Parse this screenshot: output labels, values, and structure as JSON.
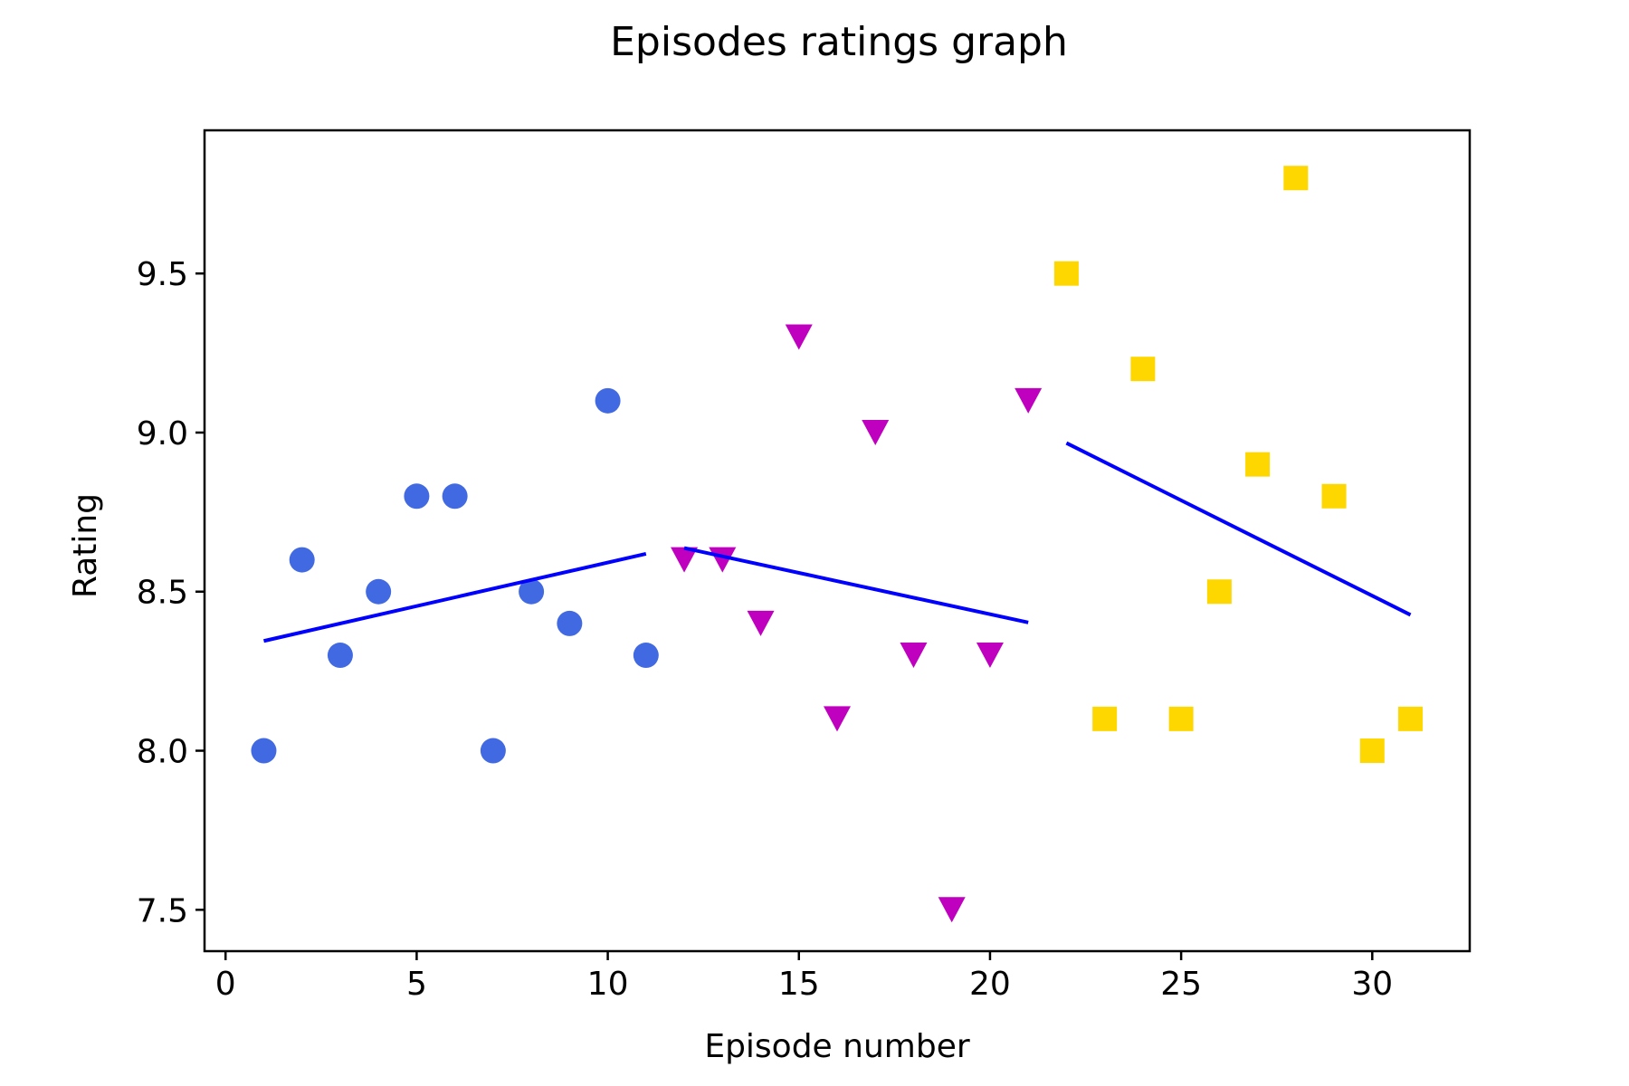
{
  "colors": {
    "background": "#ffffff",
    "axis": "#000000",
    "trend": "#0000ff"
  },
  "chart_data": {
    "type": "scatter",
    "title": "Episodes ratings graph",
    "xlabel": "Episode number",
    "ylabel": "Rating",
    "xlim": [
      -0.55,
      32.55
    ],
    "ylim": [
      7.37,
      9.95
    ],
    "xticks": [
      0,
      5,
      10,
      15,
      20,
      25,
      30
    ],
    "yticks": [
      7.5,
      8.0,
      8.5,
      9.0,
      9.5
    ],
    "xtick_labels": [
      "0",
      "5",
      "10",
      "15",
      "20",
      "25",
      "30"
    ],
    "ytick_labels": [
      "7.5",
      "8.0",
      "8.5",
      "9.0",
      "9.5"
    ],
    "grid": false,
    "series": [
      {
        "marker": "circle",
        "color": "#4169e1",
        "x": [
          1,
          2,
          3,
          4,
          5,
          6,
          7,
          8,
          9,
          10,
          11
        ],
        "y": [
          8.0,
          8.6,
          8.3,
          8.5,
          8.8,
          8.8,
          8.0,
          8.5,
          8.4,
          9.1,
          8.3
        ],
        "trend": {
          "x": [
            1,
            11
          ],
          "y": [
            8.345,
            8.619
          ]
        }
      },
      {
        "marker": "triangle-down",
        "color": "#bf00bf",
        "x": [
          12,
          13,
          14,
          15,
          16,
          17,
          18,
          19,
          20,
          21
        ],
        "y": [
          8.6,
          8.6,
          8.4,
          9.3,
          8.1,
          9.0,
          8.3,
          7.5,
          8.3,
          9.1
        ],
        "trend": {
          "x": [
            12,
            21
          ],
          "y": [
            8.637,
            8.403
          ]
        }
      },
      {
        "marker": "square",
        "color": "#ffd700",
        "x": [
          22,
          23,
          24,
          25,
          26,
          27,
          28,
          29,
          30,
          31
        ],
        "y": [
          9.5,
          8.1,
          9.2,
          8.1,
          8.5,
          8.9,
          9.8,
          8.8,
          8.0,
          8.1
        ],
        "trend": {
          "x": [
            22,
            31
          ],
          "y": [
            8.967,
            8.427
          ]
        }
      }
    ]
  }
}
